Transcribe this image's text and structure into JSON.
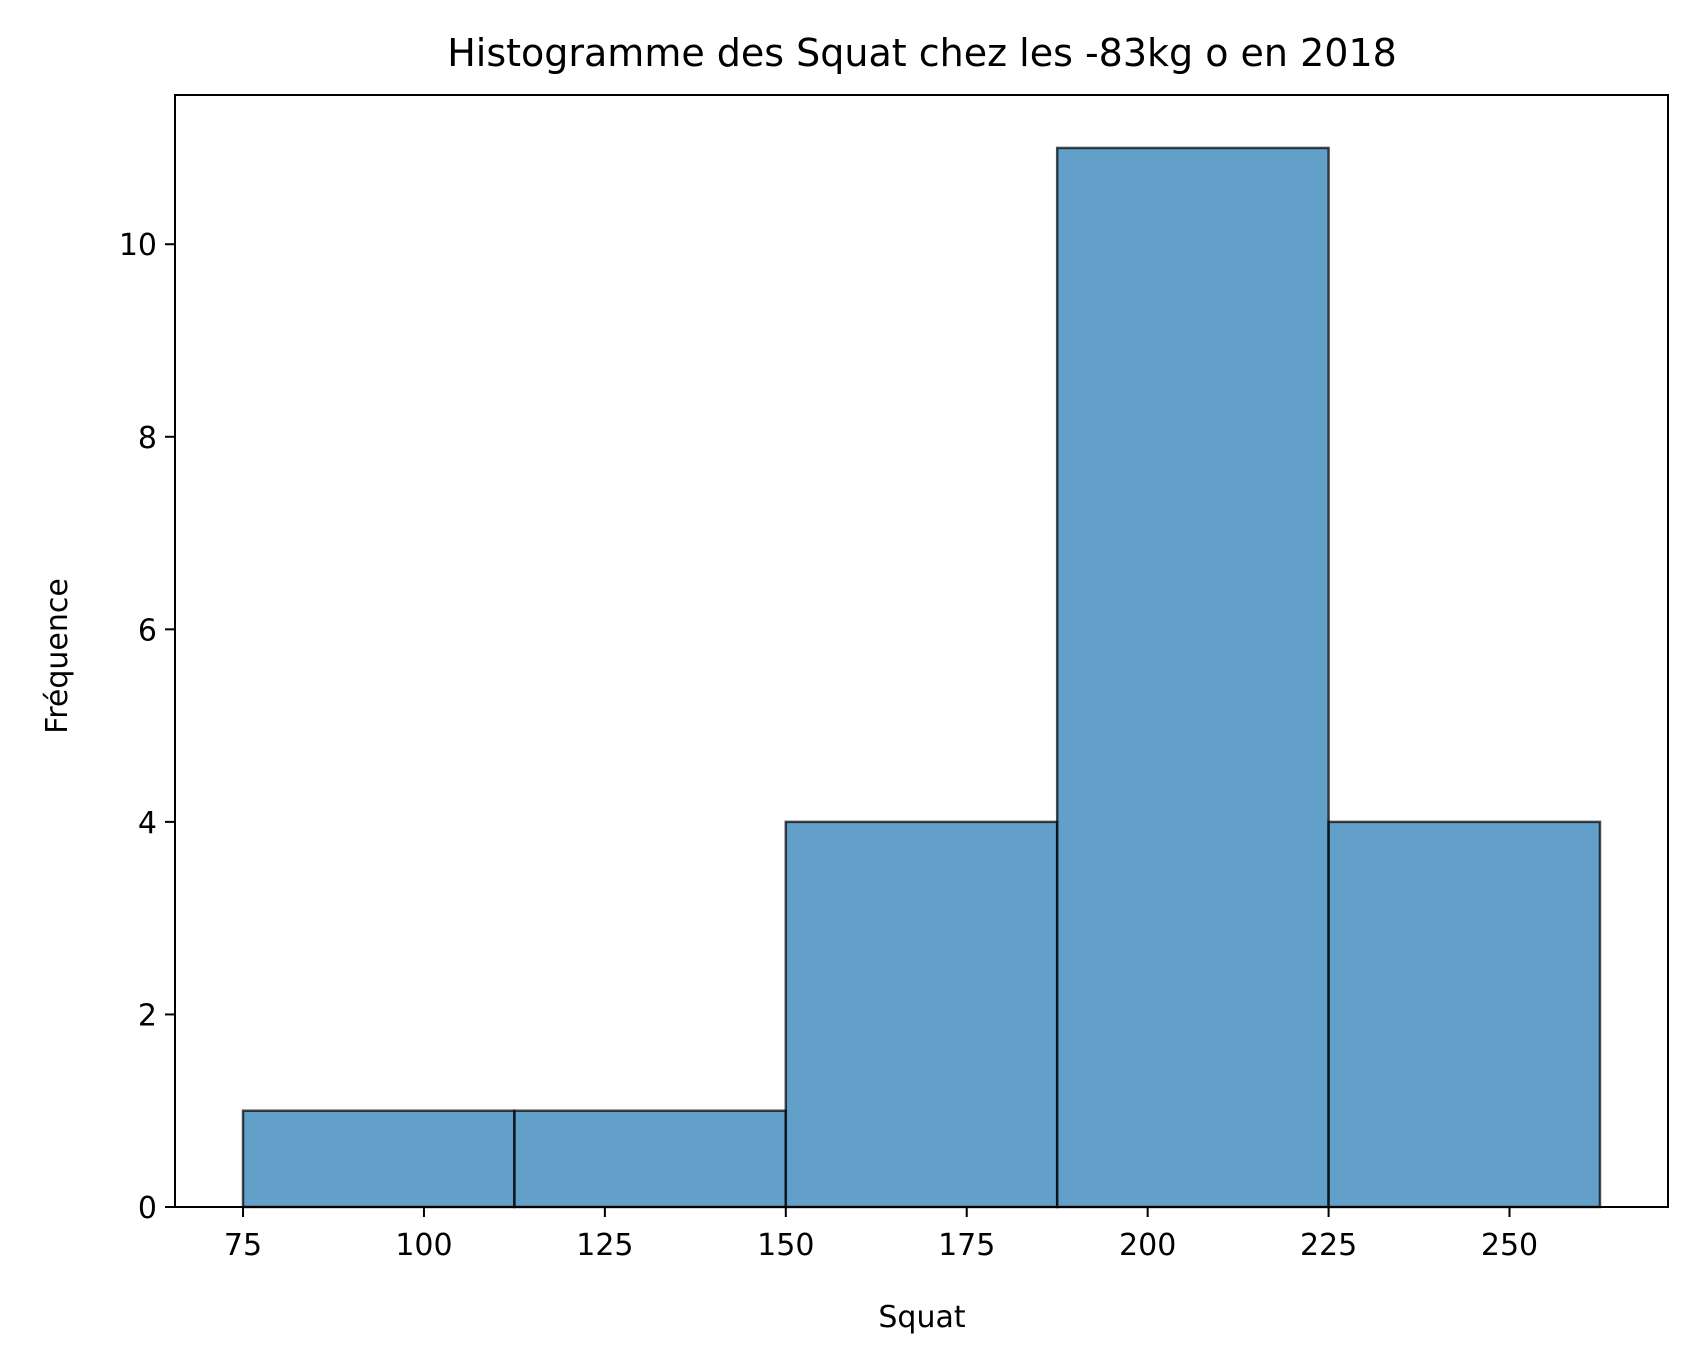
{
  "chart_data": {
    "type": "bar",
    "subtype": "histogram",
    "title": "Histogramme des Squat chez les -83kg o en 2018",
    "xlabel": "Squat",
    "ylabel": "Fréquence",
    "bins": [
      {
        "start": 75,
        "end": 112.5,
        "count": 1
      },
      {
        "start": 112.5,
        "end": 150,
        "count": 1
      },
      {
        "start": 150,
        "end": 187.5,
        "count": 4
      },
      {
        "start": 187.5,
        "end": 225,
        "count": 11
      },
      {
        "start": 225,
        "end": 262.5,
        "count": 4
      }
    ],
    "xlim": [
      65.6,
      271.9
    ],
    "ylim": [
      0,
      11.55
    ],
    "xticks": [
      75,
      100,
      125,
      150,
      175,
      200,
      225,
      250
    ],
    "yticks": [
      0,
      2,
      4,
      6,
      8,
      10
    ],
    "grid": false,
    "legend": "none",
    "colors": {
      "bar": "#1f77b4",
      "edge": "#000000"
    }
  }
}
